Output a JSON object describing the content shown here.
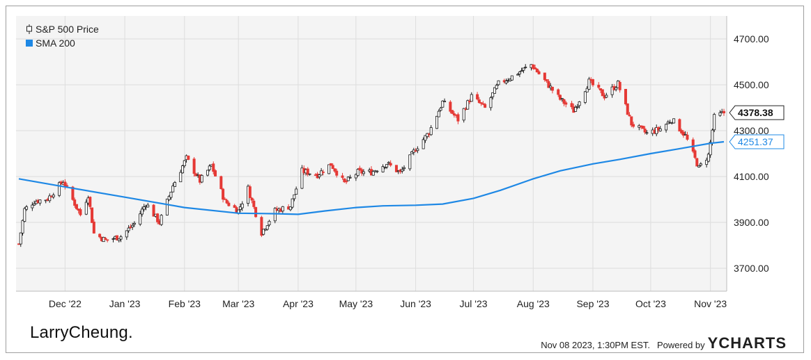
{
  "chart_data": {
    "type": "candlestick",
    "legend": [
      {
        "name": "S&P 500 Price",
        "color": "#222222",
        "icon": "candlestick-icon"
      },
      {
        "name": "SMA 200",
        "color": "#1e88e5",
        "icon": "square-swatch-icon"
      }
    ],
    "ylim": [
      3600,
      4800
    ],
    "yticks": [
      "3700.00",
      "3900.00",
      "4100.00",
      "4300.00",
      "4500.00",
      "4700.00"
    ],
    "ytick_values": [
      3700,
      3900,
      4100,
      4300,
      4500,
      4700
    ],
    "xlim": [
      "2022-11-07",
      "2023-11-08"
    ],
    "xticks": [
      {
        "label": "Dec '22",
        "date": "2022-12-01"
      },
      {
        "label": "Jan '23",
        "date": "2023-01-01"
      },
      {
        "label": "Feb '23",
        "date": "2023-02-01"
      },
      {
        "label": "Mar '23",
        "date": "2023-03-01"
      },
      {
        "label": "Apr '23",
        "date": "2023-04-01"
      },
      {
        "label": "May '23",
        "date": "2023-05-01"
      },
      {
        "label": "Jun '23",
        "date": "2023-06-01"
      },
      {
        "label": "Jul '23",
        "date": "2023-07-01"
      },
      {
        "label": "Aug '23",
        "date": "2023-08-01"
      },
      {
        "label": "Sep '23",
        "date": "2023-09-01"
      },
      {
        "label": "Oct '23",
        "date": "2023-10-01"
      },
      {
        "label": "Nov '23",
        "date": "2023-11-01"
      }
    ],
    "price_close": [
      [
        "2022-11-07",
        3806
      ],
      [
        "2022-11-10",
        3956
      ],
      [
        "2022-11-15",
        3992
      ],
      [
        "2022-11-22",
        4003
      ],
      [
        "2022-11-30",
        4080
      ],
      [
        "2022-12-05",
        3998
      ],
      [
        "2022-12-09",
        3934
      ],
      [
        "2022-12-13",
        4020
      ],
      [
        "2022-12-16",
        3852
      ],
      [
        "2022-12-22",
        3822
      ],
      [
        "2022-12-30",
        3839
      ],
      [
        "2023-01-06",
        3895
      ],
      [
        "2023-01-12",
        3983
      ],
      [
        "2023-01-19",
        3899
      ],
      [
        "2023-01-26",
        4060
      ],
      [
        "2023-02-02",
        4180
      ],
      [
        "2023-02-09",
        4081
      ],
      [
        "2023-02-15",
        4148
      ],
      [
        "2023-02-22",
        3991
      ],
      [
        "2023-03-01",
        3951
      ],
      [
        "2023-03-06",
        4048
      ],
      [
        "2023-03-13",
        3856
      ],
      [
        "2023-03-20",
        3951
      ],
      [
        "2023-03-28",
        3971
      ],
      [
        "2023-04-03",
        4124
      ],
      [
        "2023-04-11",
        4108
      ],
      [
        "2023-04-18",
        4154
      ],
      [
        "2023-04-25",
        4071
      ],
      [
        "2023-05-02",
        4119
      ],
      [
        "2023-05-09",
        4119
      ],
      [
        "2023-05-17",
        4158
      ],
      [
        "2023-05-24",
        4115
      ],
      [
        "2023-06-01",
        4221
      ],
      [
        "2023-06-08",
        4293
      ],
      [
        "2023-06-15",
        4425
      ],
      [
        "2023-06-23",
        4348
      ],
      [
        "2023-06-30",
        4450
      ],
      [
        "2023-07-07",
        4398
      ],
      [
        "2023-07-14",
        4505
      ],
      [
        "2023-07-21",
        4536
      ],
      [
        "2023-07-31",
        4588
      ],
      [
        "2023-08-07",
        4518
      ],
      [
        "2023-08-15",
        4437
      ],
      [
        "2023-08-22",
        4387
      ],
      [
        "2023-08-30",
        4514
      ],
      [
        "2023-09-07",
        4451
      ],
      [
        "2023-09-14",
        4505
      ],
      [
        "2023-09-21",
        4330
      ],
      [
        "2023-09-29",
        4288
      ],
      [
        "2023-10-06",
        4308
      ],
      [
        "2023-10-12",
        4349
      ],
      [
        "2023-10-19",
        4278
      ],
      [
        "2023-10-26",
        4137
      ],
      [
        "2023-10-31",
        4193
      ],
      [
        "2023-11-03",
        4358
      ],
      [
        "2023-11-08",
        4378.38
      ]
    ],
    "sma200": [
      [
        "2022-11-07",
        4090
      ],
      [
        "2022-12-01",
        4055
      ],
      [
        "2023-01-01",
        4010
      ],
      [
        "2023-02-01",
        3965
      ],
      [
        "2023-03-01",
        3940
      ],
      [
        "2023-03-20",
        3938
      ],
      [
        "2023-04-01",
        3935
      ],
      [
        "2023-04-15",
        3950
      ],
      [
        "2023-05-01",
        3965
      ],
      [
        "2023-05-15",
        3972
      ],
      [
        "2023-06-01",
        3975
      ],
      [
        "2023-06-15",
        3980
      ],
      [
        "2023-07-01",
        4005
      ],
      [
        "2023-07-15",
        4040
      ],
      [
        "2023-08-01",
        4090
      ],
      [
        "2023-08-15",
        4125
      ],
      [
        "2023-09-01",
        4155
      ],
      [
        "2023-09-15",
        4175
      ],
      [
        "2023-10-01",
        4200
      ],
      [
        "2023-10-15",
        4220
      ],
      [
        "2023-11-01",
        4245
      ],
      [
        "2023-11-08",
        4251.37
      ]
    ],
    "last_price_label": "4378.38",
    "last_sma_label": "4251.37"
  },
  "colors": {
    "up": "#1a1a1a",
    "down": "#e53935",
    "sma": "#1e88e5",
    "grid": "#dddddd",
    "plot_bg": "#f4f4f4"
  },
  "brand": "LarryCheung.",
  "footer": {
    "timestamp": "Nov 08 2023, 1:30PM EST.",
    "powered_by": "Powered by",
    "ycharts": "YCHARTS"
  }
}
